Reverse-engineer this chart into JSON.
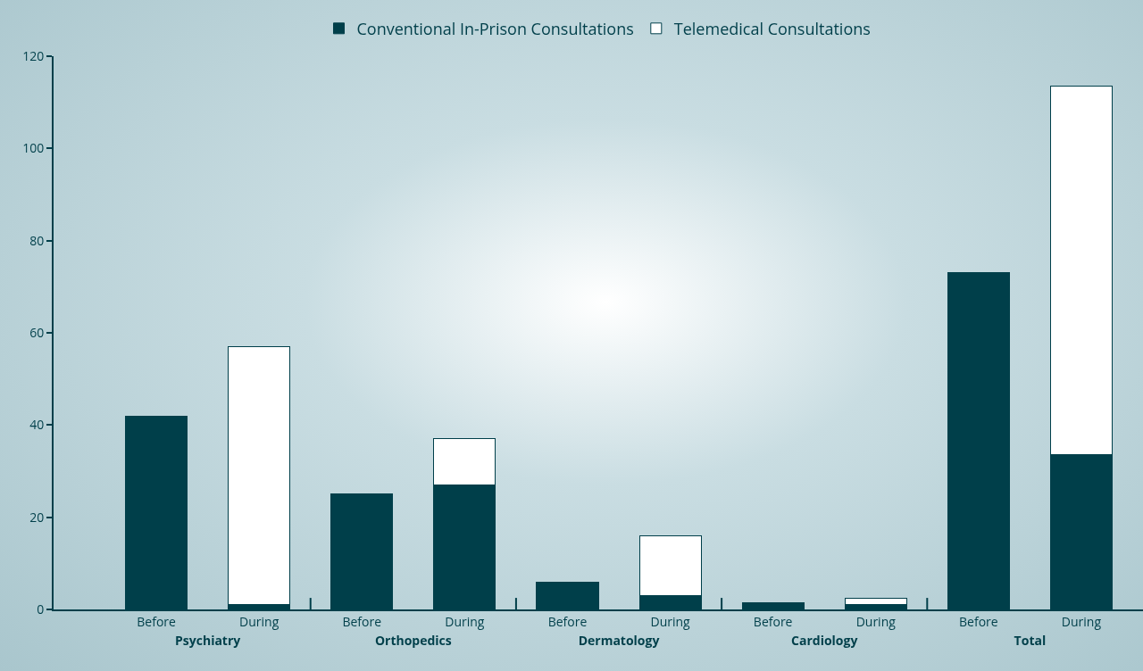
{
  "chart_data": {
    "type": "bar",
    "stacked": true,
    "categories": [
      "Before",
      "During",
      "Before",
      "During",
      "Before",
      "During",
      "Before",
      "During",
      "Before",
      "During"
    ],
    "annotations": [
      "Psychiatry",
      "Orthopedics",
      "Dermatology",
      "Cardiology",
      "Total"
    ],
    "series": [
      {
        "name": "Conventional In-Prison Consultations",
        "color": "#003f4a",
        "values": [
          42,
          1,
          25,
          27,
          6,
          3,
          1.5,
          1,
          73,
          33.5
        ]
      },
      {
        "name": "Telemedical Consultations",
        "color": "#ffffff",
        "values": [
          null,
          56,
          null,
          10,
          null,
          13,
          null,
          1.5,
          null,
          80
        ]
      }
    ],
    "ylim": [
      0,
      120
    ],
    "yticks": [
      0,
      20,
      40,
      60,
      80,
      100,
      120
    ],
    "grid": false,
    "legend": "top"
  }
}
